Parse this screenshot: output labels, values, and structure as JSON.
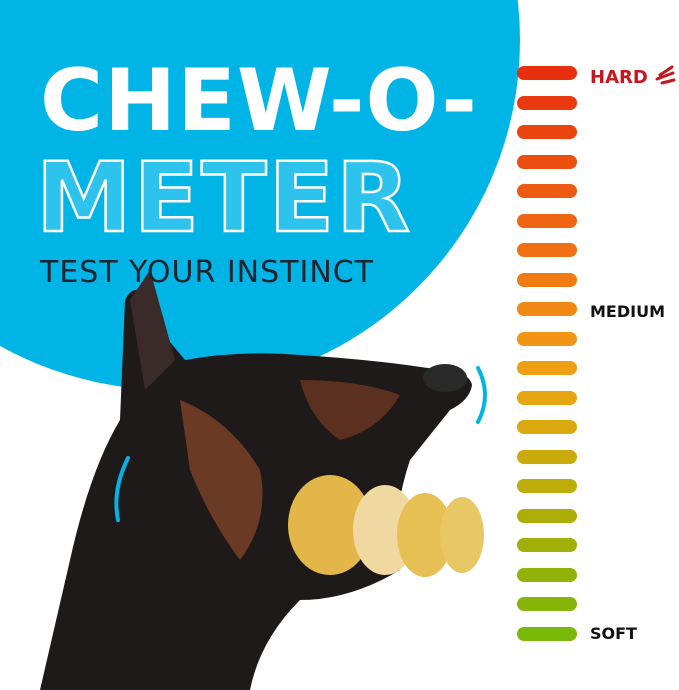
{
  "headline": {
    "line1": "CHEW-O-",
    "line2": "METER",
    "tagline": "TEST YOUR INSTINCT"
  },
  "meter": {
    "labels": {
      "hard": "HARD",
      "medium": "MEDIUM",
      "soft": "SOFT"
    },
    "bar_colors": [
      "#e8300e",
      "#e83a0e",
      "#ea440f",
      "#ec4e10",
      "#ee5a11",
      "#ef6512",
      "#f07013",
      "#f17b13",
      "#f28814",
      "#f29414",
      "#eea014",
      "#e6a612",
      "#d9a90f",
      "#cbab0c",
      "#bcad0a",
      "#aeae09",
      "#a0b008",
      "#93b208",
      "#86b408",
      "#7ab80a"
    ]
  },
  "colors": {
    "accent_blue": "#00b5e6",
    "hard_red": "#c8161e"
  }
}
